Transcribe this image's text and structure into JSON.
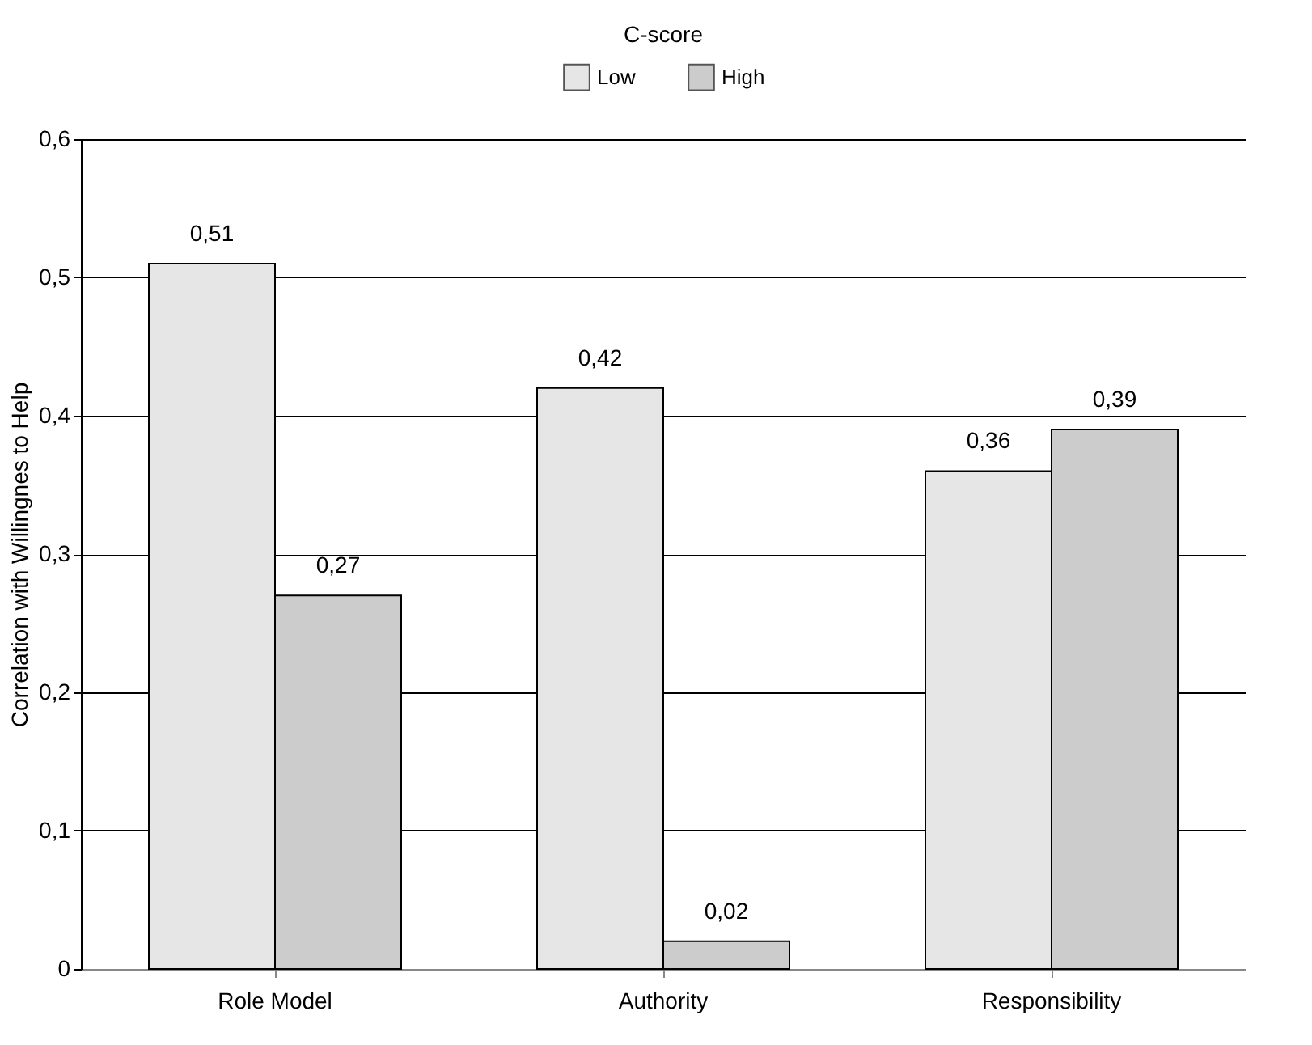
{
  "chart_data": {
    "type": "bar",
    "ylabel": "Correlation with Willingnes to Help",
    "legend_title": "C-score",
    "legend": "top",
    "categories": [
      "Role Model",
      "Authority",
      "Responsibility"
    ],
    "series": [
      {
        "name": "Low",
        "color": "#e6e6e6",
        "values": [
          0.51,
          0.42,
          0.36
        ],
        "value_labels": [
          "0,51",
          "0,42",
          "0,36"
        ]
      },
      {
        "name": "High",
        "color": "#cccccc",
        "values": [
          0.27,
          0.02,
          0.39
        ],
        "value_labels": [
          "0,27",
          "0,02",
          "0,39"
        ]
      }
    ],
    "ylim": [
      0,
      0.6
    ],
    "yticks": [
      {
        "value": 0,
        "label": "0"
      },
      {
        "value": 0.1,
        "label": "0,1"
      },
      {
        "value": 0.2,
        "label": "0,2"
      },
      {
        "value": 0.3,
        "label": "0,3"
      },
      {
        "value": 0.4,
        "label": "0,4"
      },
      {
        "value": 0.5,
        "label": "0,5"
      },
      {
        "value": 0.6,
        "label": "0,6"
      }
    ],
    "grid": "y"
  }
}
